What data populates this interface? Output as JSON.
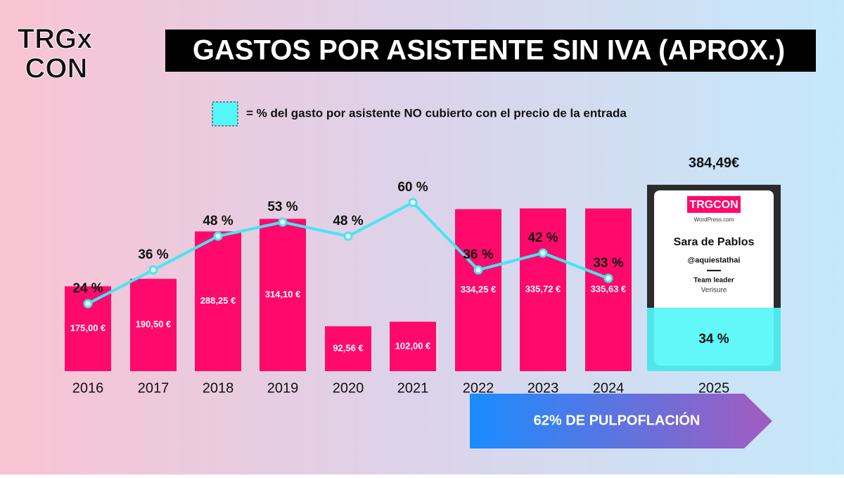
{
  "logo": {
    "line1": "TRGx",
    "line2": "CON"
  },
  "chart_data": {
    "type": "bar",
    "title": "GASTOS POR ASISTENTE SIN IVA (APROX.)",
    "legend_label": "= % del gasto por asistente NO cubierto con el precio de la entrada",
    "categories": [
      "2016",
      "2017",
      "2018",
      "2019",
      "2020",
      "2021",
      "2022",
      "2023",
      "2024",
      "2025"
    ],
    "values": [
      175.0,
      190.5,
      288.25,
      314.1,
      92.56,
      102.0,
      334.25,
      335.72,
      335.63,
      384.49
    ],
    "value_labels": [
      "175,00 €",
      "190,50 €",
      "288,25 €",
      "314,10 €",
      "92,56 €",
      "102,00 €",
      "334,25 €",
      "335,72 €",
      "335,63 €",
      "384,49€"
    ],
    "color": "#ff0a6c",
    "ylim": [
      0,
      580
    ],
    "line": {
      "values": [
        24,
        36,
        48,
        53,
        48,
        60,
        36,
        42,
        33,
        34
      ],
      "value_labels": [
        "24 %",
        "36 %",
        "48 %",
        "53 %",
        "48 %",
        "60 %",
        "36 %",
        "42 %",
        "33 %",
        "34 %"
      ],
      "color": "#45e6f0"
    },
    "y2lim": [
      0,
      100
    ]
  },
  "badge": {
    "brand": "TRGCON",
    "site": "WordPress.com",
    "name": "Sara de Pablos",
    "handle": "@aquiestathai",
    "role": "Team leader",
    "company": "Verisure"
  },
  "banner": {
    "text": "62% DE PULPOFLACIÓN"
  }
}
